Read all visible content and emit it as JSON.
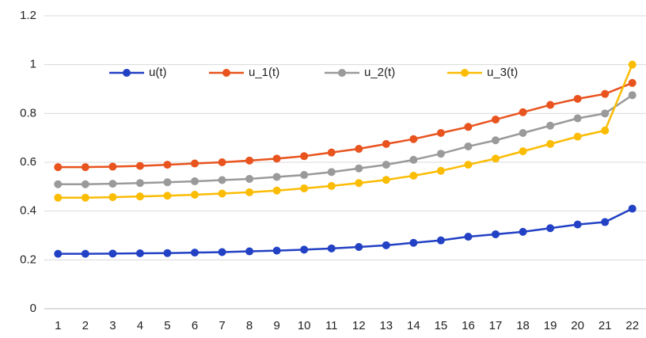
{
  "chart_data": {
    "type": "line",
    "categories": [
      "1",
      "2",
      "3",
      "4",
      "5",
      "6",
      "7",
      "8",
      "9",
      "10",
      "11",
      "12",
      "13",
      "14",
      "15",
      "16",
      "17",
      "18",
      "19",
      "20",
      "21",
      "22"
    ],
    "series": [
      {
        "name": "u(t)",
        "color": "#2241c4",
        "values": [
          0.225,
          0.225,
          0.226,
          0.227,
          0.228,
          0.23,
          0.232,
          0.235,
          0.238,
          0.242,
          0.247,
          0.253,
          0.26,
          0.27,
          0.28,
          0.295,
          0.305,
          0.315,
          0.33,
          0.345,
          0.355,
          0.41
        ]
      },
      {
        "name": "u_1(t)",
        "color": "#e8531e",
        "values": [
          0.58,
          0.58,
          0.582,
          0.585,
          0.59,
          0.595,
          0.6,
          0.607,
          0.615,
          0.625,
          0.64,
          0.655,
          0.675,
          0.695,
          0.72,
          0.745,
          0.775,
          0.805,
          0.835,
          0.86,
          0.88,
          0.925
        ]
      },
      {
        "name": "u_2(t)",
        "color": "#9a9a9a",
        "values": [
          0.51,
          0.51,
          0.512,
          0.515,
          0.518,
          0.522,
          0.527,
          0.532,
          0.54,
          0.548,
          0.56,
          0.575,
          0.59,
          0.61,
          0.635,
          0.665,
          0.69,
          0.72,
          0.75,
          0.78,
          0.8,
          0.875
        ]
      },
      {
        "name": "u_3(t)",
        "color": "#fbbc04",
        "values": [
          0.455,
          0.455,
          0.457,
          0.46,
          0.463,
          0.467,
          0.472,
          0.477,
          0.484,
          0.493,
          0.503,
          0.515,
          0.528,
          0.545,
          0.565,
          0.59,
          0.615,
          0.645,
          0.675,
          0.705,
          0.73,
          1.0
        ]
      }
    ],
    "ylim": [
      0,
      1.2
    ],
    "yticks": [
      0,
      0.2,
      0.4,
      0.6,
      0.8,
      1,
      1.2
    ],
    "grid": true
  }
}
